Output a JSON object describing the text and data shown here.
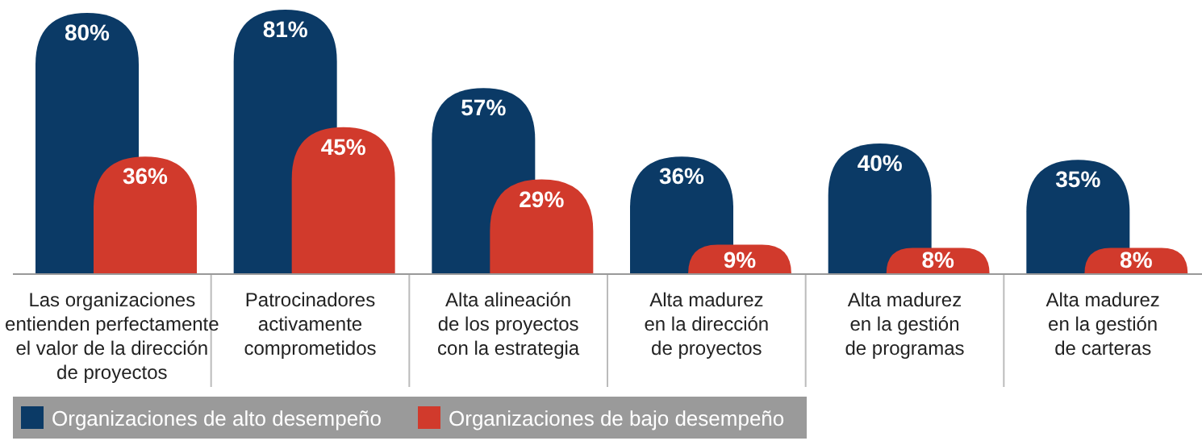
{
  "chart_data": {
    "type": "bar",
    "categories": [
      "Las organizaciones\nentienden perfectamente\nel valor de la dirección\nde proyectos",
      "Patrocinadores\nactivamente\ncomprometidos",
      "Alta alineación\nde los proyectos\ncon la estrategia",
      "Alta madurez\nen la dirección\nde proyectos",
      "Alta madurez\nen la gestión\nde programas",
      "Alta madurez\nen la gestión\nde carteras"
    ],
    "series": [
      {
        "name": "Organizaciones de alto desempeño",
        "color": "#0b3a66",
        "values": [
          80,
          81,
          57,
          36,
          40,
          35
        ],
        "value_labels": [
          "80%",
          "81%",
          "57%",
          "36%",
          "40%",
          "35%"
        ]
      },
      {
        "name": "Organizaciones de bajo desempeño",
        "color": "#d13a2c",
        "values": [
          36,
          45,
          29,
          9,
          8,
          8
        ],
        "value_labels": [
          "36%",
          "45%",
          "29%",
          "9%",
          "8%",
          "8%"
        ]
      }
    ],
    "legend": "bottom left"
  }
}
